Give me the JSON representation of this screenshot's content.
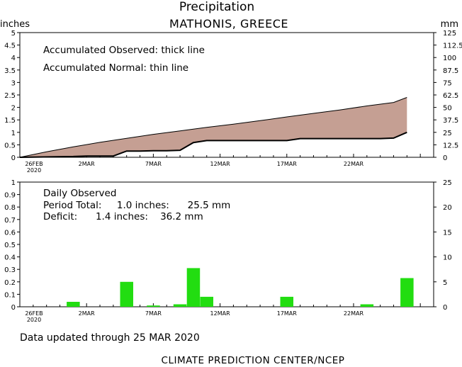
{
  "title": "Precipitation",
  "subtitle": "MATHONIS, GREECE",
  "left_unit": "inches",
  "right_unit": "mm",
  "updated_text": "Data updated through 25 MAR 2020",
  "footer": "CLIMATE PREDICTION CENTER/NCEP",
  "colors": {
    "deficit_fill": "#c59f93",
    "bar": "#22dd11",
    "axis": "#000000"
  },
  "chart_data": [
    {
      "type": "area",
      "name": "accumulated",
      "notes": [
        "Accumulated Observed: thick line",
        "Accumulated Normal: thin line"
      ],
      "x_ticks": [
        "26FEB",
        "2MAR",
        "7MAR",
        "12MAR",
        "17MAR",
        "22MAR"
      ],
      "x_sublabel": "2020",
      "x_range_days": [
        0,
        29
      ],
      "ylim_inches": [
        0,
        5
      ],
      "y_ticks_inches": [
        "0",
        "0.5",
        "1",
        "1.5",
        "2",
        "2.5",
        "3",
        "3.5",
        "4",
        "4.5",
        "5"
      ],
      "ylim_mm": [
        0,
        125
      ],
      "y_ticks_mm": [
        "0",
        "12.5",
        "25",
        "37.5",
        "50",
        "62.5",
        "75",
        "87.5",
        "100",
        "112.5",
        "125"
      ],
      "series": [
        {
          "name": "Accumulated Observed",
          "x": [
            0,
            4,
            5,
            6,
            7,
            8,
            9,
            10,
            11,
            12,
            13,
            14,
            15,
            16,
            17,
            18,
            19,
            20,
            21,
            22,
            23,
            24,
            25,
            26,
            27,
            28,
            29
          ],
          "values": [
            0,
            0.03,
            0.05,
            0.05,
            0.05,
            0.25,
            0.25,
            0.26,
            0.26,
            0.28,
            0.59,
            0.67,
            0.67,
            0.67,
            0.67,
            0.67,
            0.67,
            0.67,
            0.75,
            0.75,
            0.75,
            0.75,
            0.75,
            0.75,
            0.75,
            0.77,
            1.0
          ]
        },
        {
          "name": "Accumulated Normal",
          "x": [
            0,
            2,
            4,
            6,
            8,
            10,
            12,
            14,
            16,
            18,
            20,
            22,
            24,
            26,
            28,
            29
          ],
          "values": [
            0,
            0.22,
            0.42,
            0.6,
            0.76,
            0.92,
            1.06,
            1.2,
            1.33,
            1.47,
            1.62,
            1.76,
            1.9,
            2.06,
            2.2,
            2.4
          ]
        }
      ]
    },
    {
      "type": "bar",
      "name": "daily",
      "notes": [
        "Daily Observed",
        "Period Total:     1.0 inches:      25.5 mm",
        "Deficit:      1.4 inches:    36.2 mm"
      ],
      "x_ticks": [
        "26FEB",
        "2MAR",
        "7MAR",
        "12MAR",
        "17MAR",
        "22MAR"
      ],
      "x_sublabel": "2020",
      "x_range_days": [
        0,
        29
      ],
      "ylim_inches": [
        0,
        1
      ],
      "y_ticks_inches": [
        "0",
        "0.1",
        "0.2",
        "0.3",
        "0.4",
        "0.5",
        "0.6",
        "0.7",
        "0.8",
        "0.9",
        "1"
      ],
      "ylim_mm": [
        0,
        25
      ],
      "y_ticks_mm": [
        "0",
        "5",
        "10",
        "15",
        "20",
        "25"
      ],
      "bars": {
        "x": [
          4,
          8,
          10,
          12,
          13,
          14,
          20,
          26,
          29
        ],
        "values": [
          0.04,
          0.2,
          0.01,
          0.02,
          0.31,
          0.08,
          0.08,
          0.02,
          0.23
        ]
      }
    }
  ]
}
